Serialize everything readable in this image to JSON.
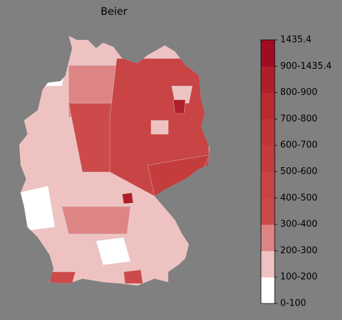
{
  "title": "Beier",
  "colorbar": {
    "labels": [
      "0-100",
      "100-200",
      "200-300",
      "300-400",
      "400-500",
      "500-600",
      "600-700",
      "700-800",
      "800-900",
      "900-1435.4",
      "1435.4"
    ],
    "colors": [
      "#ffffff",
      "#efc2c2",
      "#dd8585",
      "#cd4a4a",
      "#c94444",
      "#c53c3c",
      "#c03636",
      "#b92b2f",
      "#b01f29",
      "#a00d22"
    ]
  }
}
